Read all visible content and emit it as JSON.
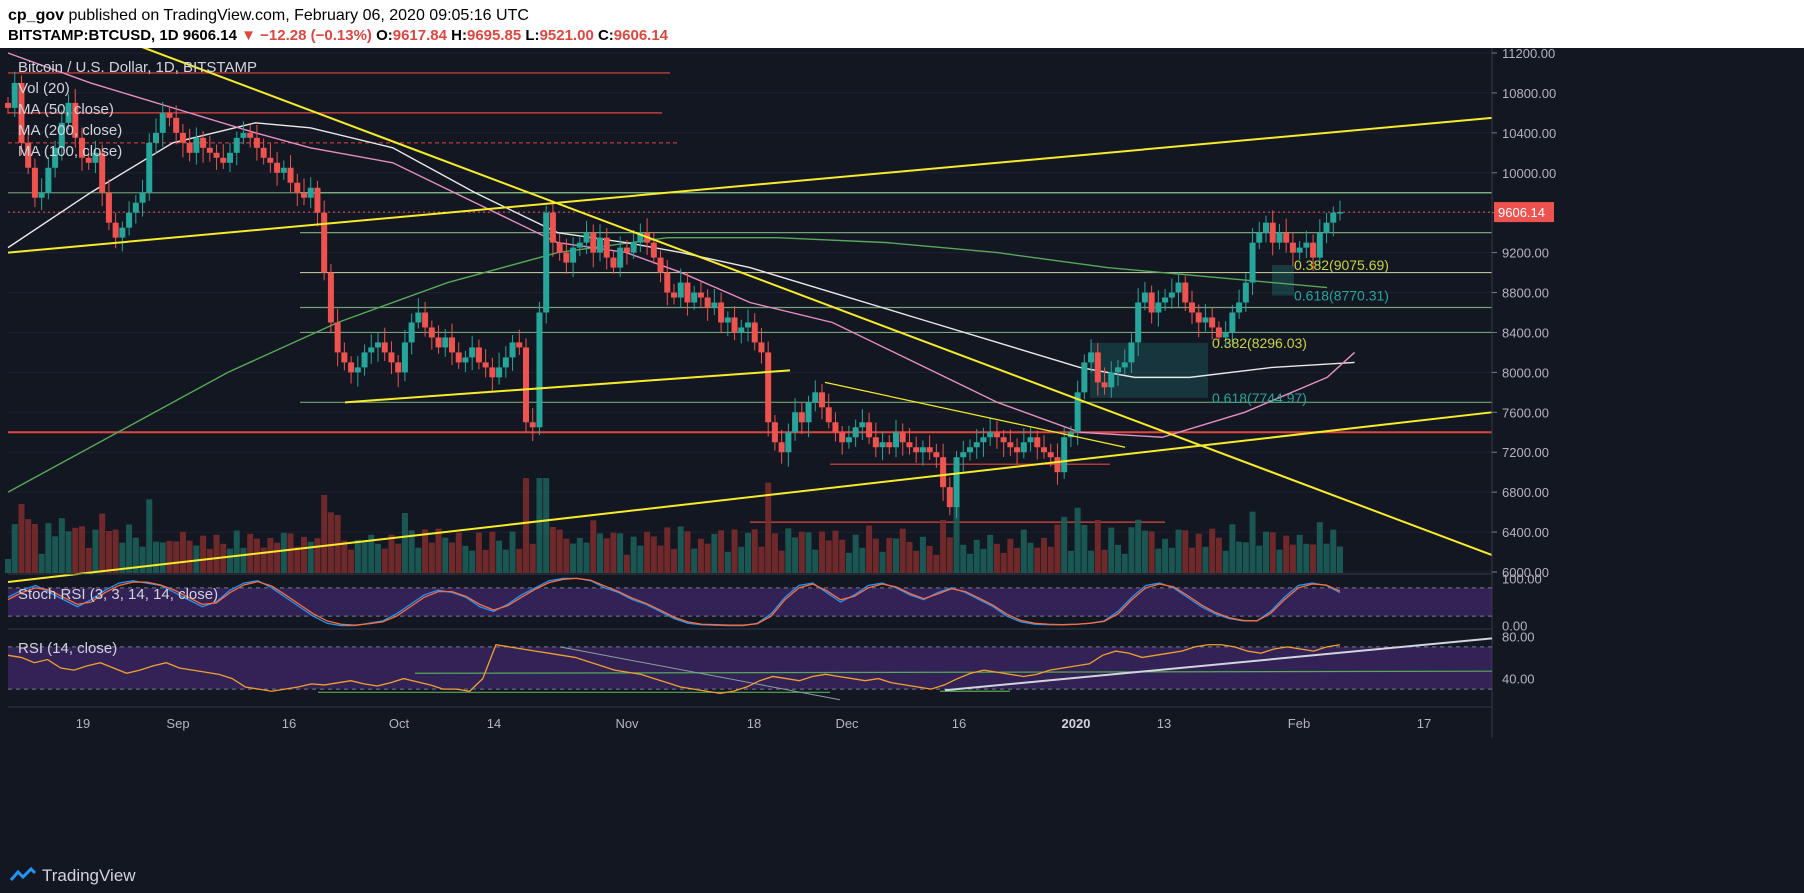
{
  "header": {
    "user": "cp_gov",
    "published_text": "published on TradingView.com, February 06, 2020 09:05:16 UTC",
    "symbol_line": "BITSTAMP:BTCUSD, 1D",
    "last": "9606.14",
    "change": "▼ −12.28 (−0.13%)",
    "o_label": "O:",
    "o": "9617.84",
    "h_label": "H:",
    "h": "9695.85",
    "l_label": "L:",
    "l": "9521.00",
    "c_label": "C:",
    "c": "9606.14"
  },
  "legend": {
    "title": "Bitcoin / U.S. Dollar, 1D, BITSTAMP",
    "vol": "Vol (20)",
    "ma50": "MA (50, close)",
    "ma200": "MA (200, close)",
    "ma100": "MA (100, close)"
  },
  "stoch_legend": "Stoch RSI (3, 3, 14, 14, close)",
  "rsi_legend": "RSI (14, close)",
  "footer": {
    "brand": "TradingView"
  },
  "colors": {
    "bg": "#131722",
    "up": "#26a69a",
    "down": "#ef5350",
    "yellow": "#f7ec2a",
    "ma50": "#e58fc4",
    "ma100": "#e8e8e8",
    "ma200": "#57a85a",
    "rsi": "#f0a030",
    "stoch_k": "#2196f3",
    "stoch_d": "#ff6b3d",
    "panel": "#4a2a78"
  },
  "chart_data": [
    {
      "type": "candlestick",
      "title": "Bitcoin / U.S. Dollar, 1D, BITSTAMP",
      "y_ticks": [
        6000,
        6400,
        6800,
        7200,
        7600,
        8000,
        8400,
        8800,
        9200,
        9600,
        10000,
        10400,
        10800,
        11200
      ],
      "y_tick_labels": [
        "6000.00",
        "6400.00",
        "6800.00",
        "7200.00",
        "7600.00",
        "8000.00",
        "8400.00",
        "8800.00",
        "9200.00",
        "9600.00",
        "10000.00",
        "10400.00",
        "10800.00",
        "11200.00"
      ],
      "ylim": [
        5990,
        11250
      ],
      "x_tick_labels": [
        "19",
        "Sep",
        "16",
        "Oct",
        "14",
        "Nov",
        "18",
        "Dec",
        "16",
        "2020",
        "13",
        "Feb",
        "17"
      ],
      "last_price_label": "9606.14",
      "fib_levels": [
        {
          "label": "0.382(9075.69)",
          "value": 9075.69
        },
        {
          "label": "0.618(8770.31)",
          "value": 8770.31
        },
        {
          "label": "0.382(8296.03)",
          "value": 8296.03
        },
        {
          "label": "0.618(7744.97)",
          "value": 7744.97
        }
      ],
      "closes": [
        10650,
        10900,
        10300,
        10050,
        9750,
        9800,
        10050,
        10250,
        10500,
        10700,
        10350,
        10150,
        10100,
        10200,
        9800,
        9500,
        9350,
        9450,
        9600,
        9700,
        9800,
        10300,
        10400,
        10600,
        10550,
        10400,
        10300,
        10200,
        10350,
        10250,
        10200,
        10150,
        10100,
        10200,
        10350,
        10400,
        10350,
        10250,
        10150,
        10100,
        10000,
        10050,
        9900,
        9800,
        9750,
        9850,
        9600,
        9000,
        8500,
        8200,
        8100,
        8000,
        8050,
        8200,
        8250,
        8300,
        8200,
        8100,
        8000,
        8300,
        8500,
        8600,
        8450,
        8350,
        8250,
        8350,
        8200,
        8100,
        8150,
        8250,
        8100,
        8050,
        7950,
        8050,
        8150,
        8300,
        8250,
        7500,
        7450,
        8600,
        9600,
        9300,
        9200,
        9100,
        9250,
        9300,
        9400,
        9200,
        9350,
        9150,
        9050,
        9250,
        9200,
        9300,
        9400,
        9300,
        9150,
        9000,
        8800,
        8750,
        8900,
        8700,
        8800,
        8750,
        8650,
        8700,
        8500,
        8550,
        8400,
        8450,
        8500,
        8300,
        8200,
        7500,
        7300,
        7200,
        7400,
        7600,
        7500,
        7700,
        7800,
        7650,
        7500,
        7400,
        7300,
        7350,
        7450,
        7500,
        7350,
        7250,
        7300,
        7250,
        7400,
        7300,
        7250,
        7200,
        7250,
        7200,
        7150,
        6850,
        6650,
        7150,
        7200,
        7250,
        7300,
        7350,
        7400,
        7350,
        7300,
        7250,
        7200,
        7300,
        7350,
        7250,
        7200,
        7150,
        7000,
        7350,
        7400,
        7800,
        8100,
        8200,
        7900,
        7850,
        8000,
        8050,
        8100,
        8300,
        8700,
        8800,
        8600,
        8700,
        8750,
        8800,
        8900,
        8700,
        8600,
        8500,
        8550,
        8450,
        8350,
        8400,
        8600,
        8700,
        8900,
        9300,
        9400,
        9500,
        9300,
        9400,
        9300,
        9200,
        9250,
        9300,
        9150,
        9400,
        9500,
        9600,
        9606
      ],
      "ma100_pts": [
        [
          0,
          9250
        ],
        [
          30,
          9800
        ],
        [
          60,
          10300
        ],
        [
          90,
          10500
        ],
        [
          110,
          10450
        ],
        [
          140,
          10250
        ],
        [
          170,
          9800
        ],
        [
          200,
          9400
        ],
        [
          225,
          9300
        ],
        [
          245,
          9200
        ],
        [
          270,
          9050
        ],
        [
          300,
          8800
        ],
        [
          330,
          8550
        ],
        [
          360,
          8300
        ],
        [
          390,
          8050
        ],
        [
          410,
          7950
        ],
        [
          430,
          7950
        ],
        [
          460,
          8050
        ],
        [
          490,
          8100
        ]
      ],
      "ma50_pts": [
        [
          0,
          11200
        ],
        [
          30,
          10900
        ],
        [
          60,
          10650
        ],
        [
          90,
          10400
        ],
        [
          110,
          10250
        ],
        [
          140,
          10100
        ],
        [
          170,
          9700
        ],
        [
          200,
          9300
        ],
        [
          225,
          9200
        ],
        [
          245,
          9000
        ],
        [
          270,
          8700
        ],
        [
          300,
          8500
        ],
        [
          330,
          8100
        ],
        [
          360,
          7700
        ],
        [
          390,
          7400
        ],
        [
          420,
          7350
        ],
        [
          450,
          7600
        ],
        [
          480,
          7950
        ],
        [
          490,
          8200
        ]
      ],
      "ma200_pts": [
        [
          0,
          6800
        ],
        [
          40,
          7400
        ],
        [
          80,
          8000
        ],
        [
          120,
          8500
        ],
        [
          160,
          8900
        ],
        [
          200,
          9200
        ],
        [
          240,
          9350
        ],
        [
          280,
          9350
        ],
        [
          320,
          9300
        ],
        [
          360,
          9200
        ],
        [
          400,
          9050
        ],
        [
          440,
          8950
        ],
        [
          480,
          8850
        ]
      ],
      "trendlines": [
        {
          "type": "resistance-down",
          "p1": [
            40,
            11350
          ],
          "p2": [
            540,
            6170
          ]
        },
        {
          "type": "triangle-top",
          "p1": [
            0,
            9200
          ],
          "p2": [
            540,
            10550
          ]
        },
        {
          "type": "triangle-bottom",
          "p1": [
            0,
            5900
          ],
          "p2": [
            540,
            7600
          ]
        }
      ]
    },
    {
      "type": "line",
      "title": "Stoch RSI (3, 3, 14, 14, close)",
      "y_ticks": [
        0,
        100
      ],
      "y_tick_labels": [
        "0.00",
        "100.00"
      ],
      "ylim": [
        -5,
        105
      ],
      "series": [
        {
          "name": "",
          "values": [
            60,
            75,
            85,
            70,
            55,
            40,
            55,
            75,
            90,
            95,
            90,
            85,
            70,
            55,
            40,
            50,
            75,
            90,
            95,
            80,
            60,
            40,
            20,
            5,
            0,
            0,
            5,
            10,
            25,
            45,
            65,
            75,
            70,
            60,
            40,
            30,
            45,
            65,
            80,
            95,
            100,
            100,
            95,
            80,
            70,
            55,
            45,
            30,
            15,
            5,
            2,
            1,
            0,
            0,
            5,
            25,
            60,
            85,
            90,
            70,
            50,
            65,
            85,
            90,
            80,
            65,
            55,
            70,
            80,
            70,
            55,
            40,
            20,
            8,
            3,
            2,
            2,
            3,
            5,
            10,
            30,
            60,
            85,
            90,
            80,
            60,
            40,
            25,
            15,
            10,
            10,
            30,
            60,
            85,
            90,
            85,
            70
          ]
        },
        {
          "name": "",
          "values": [
            55,
            70,
            80,
            75,
            60,
            45,
            50,
            70,
            85,
            92,
            92,
            86,
            75,
            60,
            45,
            48,
            70,
            86,
            93,
            84,
            65,
            45,
            25,
            10,
            3,
            1,
            4,
            8,
            20,
            40,
            60,
            72,
            72,
            62,
            45,
            33,
            42,
            60,
            77,
            91,
            98,
            100,
            96,
            84,
            72,
            58,
            47,
            33,
            18,
            8,
            3,
            2,
            1,
            1,
            4,
            20,
            55,
            80,
            88,
            74,
            55,
            62,
            80,
            88,
            82,
            68,
            57,
            67,
            78,
            72,
            58,
            43,
            24,
            11,
            5,
            3,
            2,
            3,
            5,
            9,
            25,
            55,
            80,
            88,
            82,
            64,
            44,
            28,
            17,
            11,
            10,
            26,
            55,
            80,
            88,
            86,
            73
          ]
        }
      ]
    },
    {
      "type": "line",
      "title": "RSI (14, close)",
      "y_ticks": [
        40,
        80
      ],
      "y_tick_labels": [
        "40.00",
        "80.00"
      ],
      "ylim": [
        15,
        85
      ],
      "series": [
        {
          "name": "",
          "values": [
            62,
            60,
            55,
            58,
            50,
            48,
            52,
            55,
            50,
            45,
            48,
            52,
            55,
            50,
            48,
            46,
            44,
            40,
            32,
            30,
            28,
            30,
            32,
            35,
            34,
            36,
            38,
            35,
            33,
            36,
            40,
            37,
            34,
            30,
            30,
            28,
            40,
            72,
            70,
            68,
            66,
            64,
            62,
            60,
            56,
            52,
            48,
            46,
            44,
            40,
            36,
            32,
            30,
            28,
            26,
            28,
            32,
            38,
            42,
            40,
            38,
            42,
            44,
            42,
            40,
            38,
            40,
            36,
            34,
            32,
            30,
            34,
            40,
            45,
            48,
            46,
            44,
            42,
            44,
            48,
            50,
            52,
            54,
            62,
            66,
            64,
            60,
            62,
            64,
            66,
            70,
            72,
            72,
            70,
            66,
            64,
            68,
            70,
            68,
            66,
            70,
            72
          ]
        }
      ]
    }
  ]
}
